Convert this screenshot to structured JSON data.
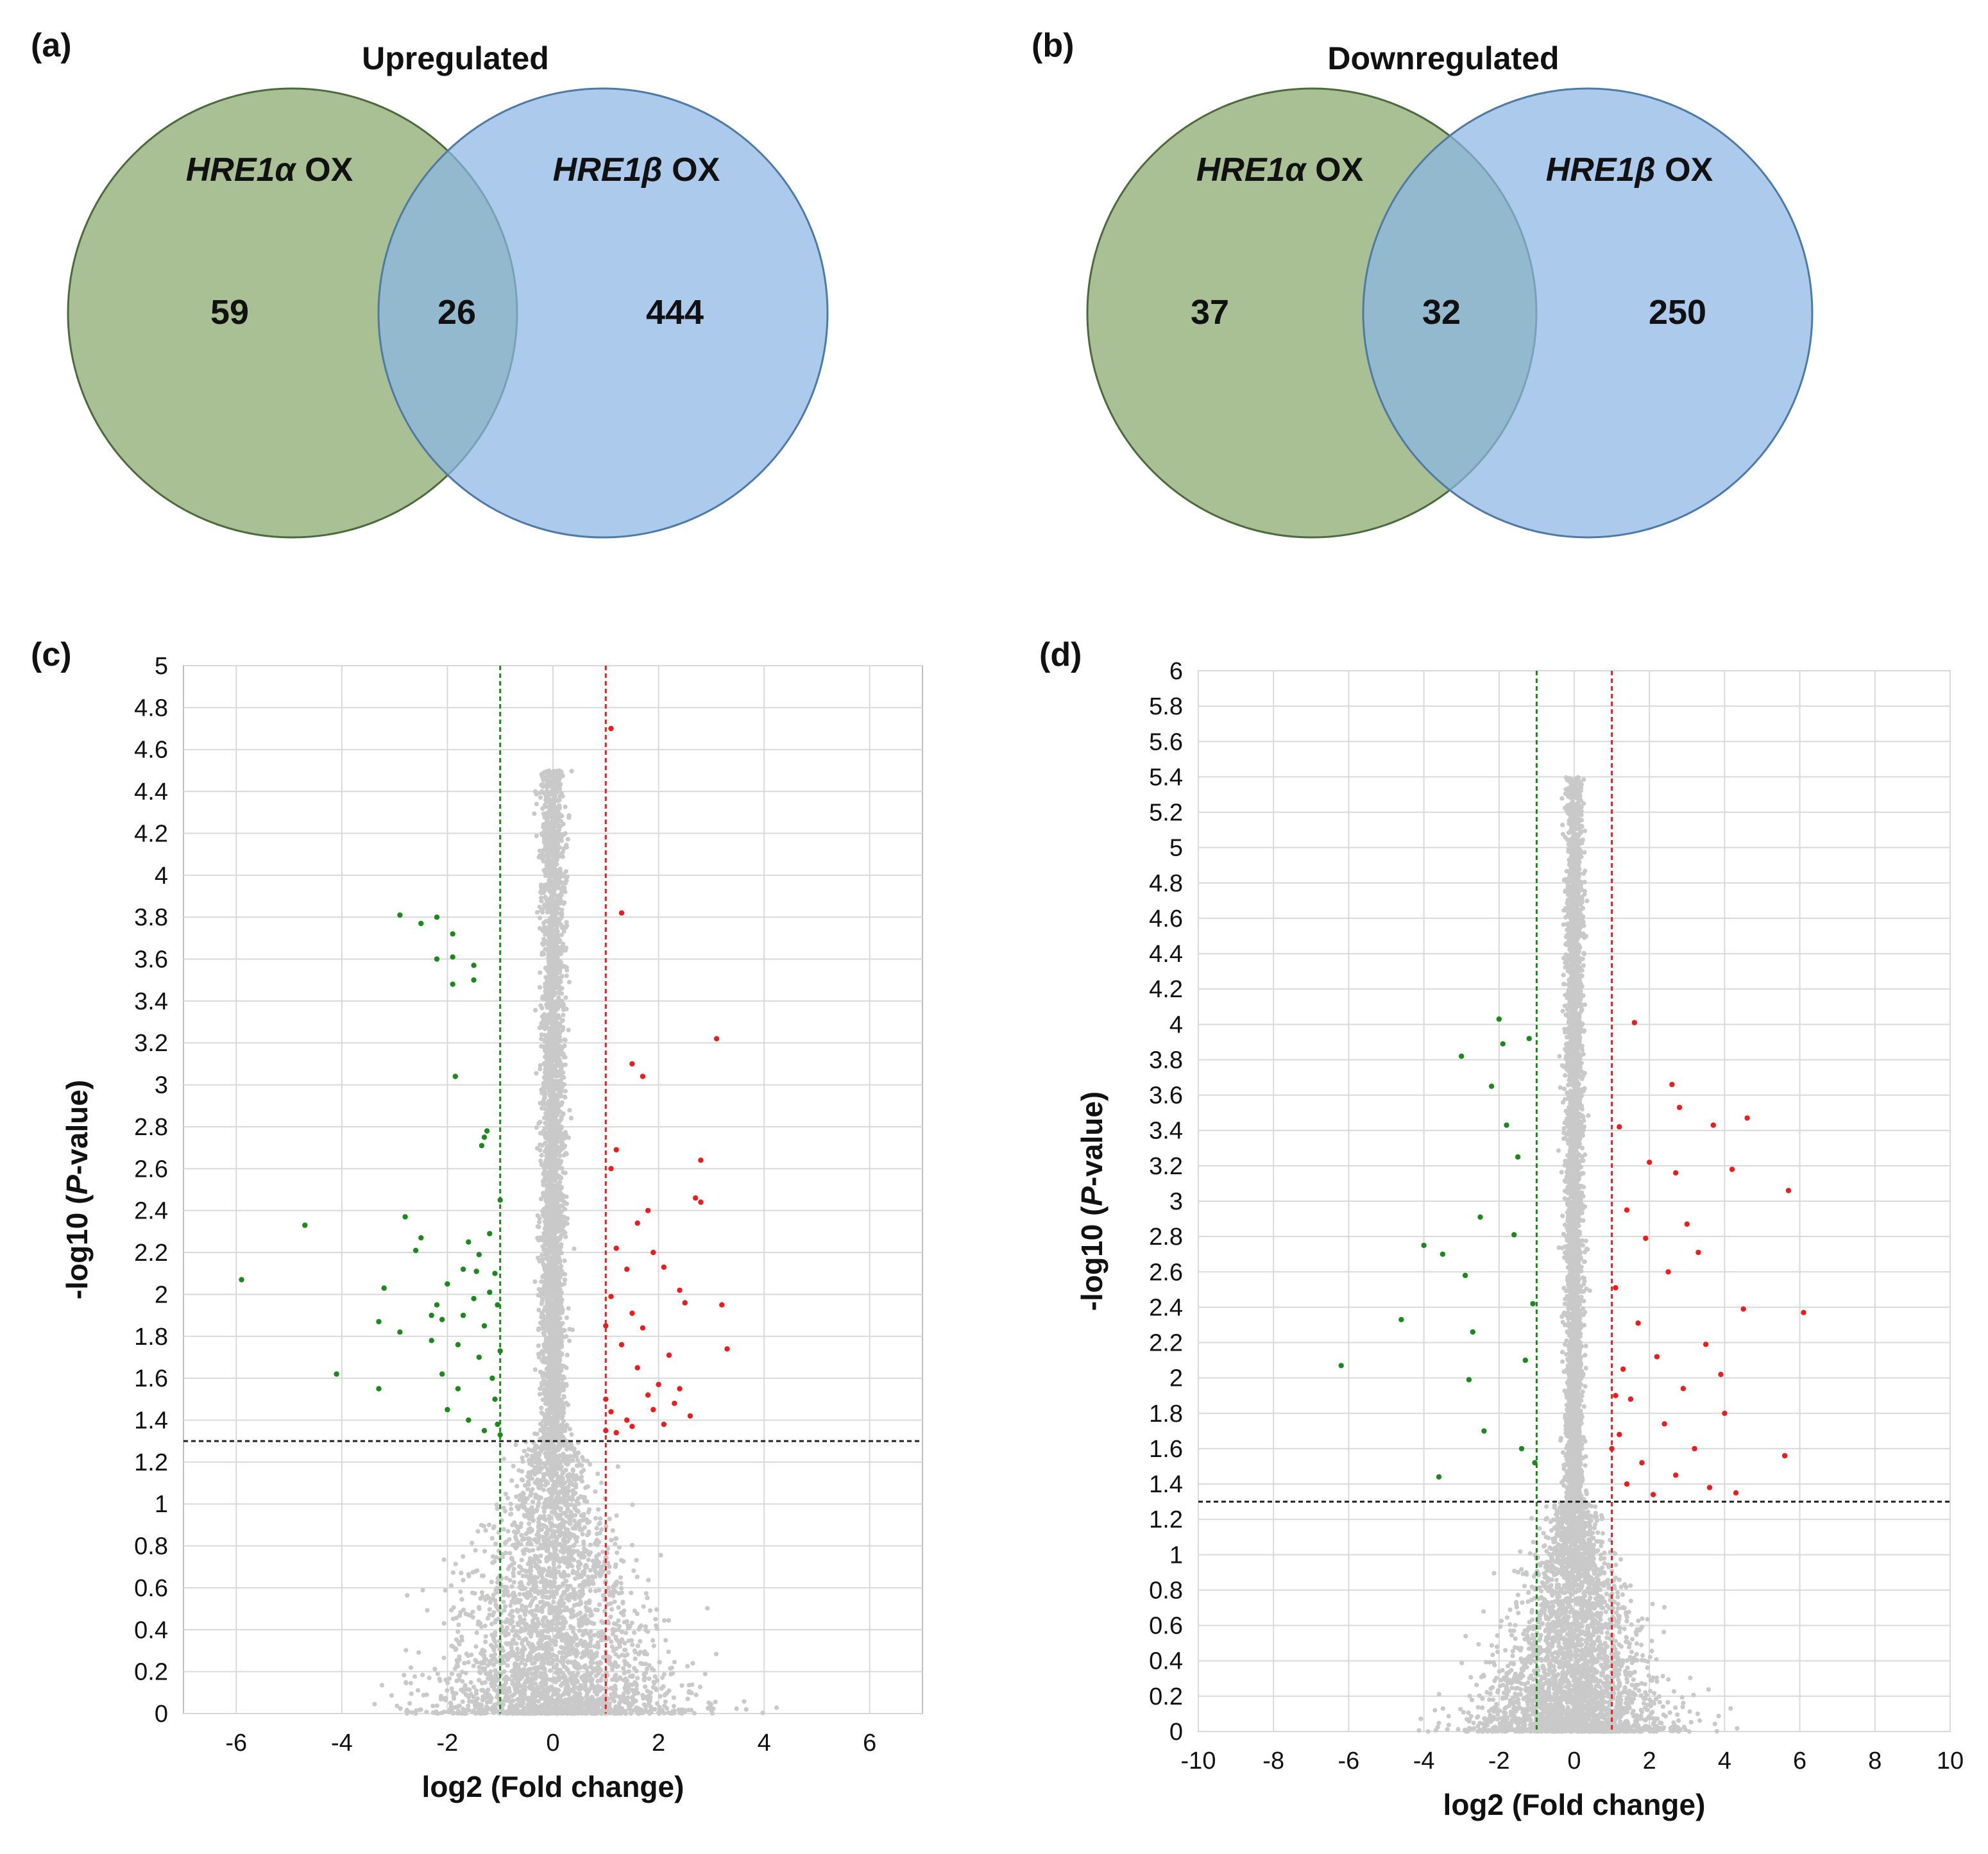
{
  "panels": {
    "a": {
      "label": "(a)",
      "title": "Upregulated",
      "set_left_italic": "HRE1α",
      "set_left_suffix": " OX",
      "set_right_italic": "HRE1β",
      "set_right_suffix": " OX",
      "left_only": "59",
      "intersection": "26",
      "right_only": "444"
    },
    "b": {
      "label": "(b)",
      "title": "Downregulated",
      "set_left_italic": "HRE1α",
      "set_left_suffix": " OX",
      "set_right_italic": "HRE1β",
      "set_right_suffix": " OX",
      "left_only": "37",
      "intersection": "32",
      "right_only": "250"
    },
    "c": {
      "label": "(c)"
    },
    "d": {
      "label": "(d)"
    }
  },
  "colors": {
    "venn_left": "#8fae74",
    "venn_right": "#8ab6e4",
    "venn_overlap": "#6f9fa6",
    "venn_left_stroke": "#4c6b3d",
    "venn_right_stroke": "#4e7aa6",
    "not_significant": "#c9c9c9",
    "down": "#1a8a1a",
    "up": "#ee1c1c",
    "grid": "#d9d9d9"
  },
  "chart_data": [
    {
      "type": "scatter",
      "panel": "c",
      "xlabel": "log2 (Fold change)",
      "ylabel_pre": "-log10 (",
      "ylabel_italic": "P",
      "ylabel_post": "-value)",
      "xlim": [
        -7,
        7
      ],
      "ylim": [
        0,
        5
      ],
      "xticks": [
        "-6",
        "-4",
        "-2",
        "0",
        "2",
        "4",
        "6"
      ],
      "xtick_values": [
        -6,
        -4,
        -2,
        0,
        2,
        4,
        6
      ],
      "yticks": [
        "0",
        "0.2",
        "0.4",
        "0.6",
        "0.8",
        "1",
        "1.2",
        "1.4",
        "1.6",
        "1.8",
        "2",
        "2.2",
        "2.4",
        "2.6",
        "2.8",
        "3",
        "3.2",
        "3.4",
        "3.6",
        "3.8",
        "4",
        "4.2",
        "4.4",
        "4.6",
        "4.8",
        "5"
      ],
      "ytick_step": 0.2,
      "fold_thresholds": [
        -1,
        1
      ],
      "p_threshold": 1.3,
      "series": [
        {
          "name": "down",
          "points": [
            [
              -5.9,
              2.07
            ],
            [
              -4.7,
              2.33
            ],
            [
              -4.1,
              1.62
            ],
            [
              -3.3,
              1.55
            ],
            [
              -3.3,
              1.87
            ],
            [
              -3.2,
              2.03
            ],
            [
              -2.9,
              1.82
            ],
            [
              -2.9,
              3.81
            ],
            [
              -2.8,
              2.37
            ],
            [
              -2.6,
              2.21
            ],
            [
              -2.5,
              2.27
            ],
            [
              -2.5,
              3.77
            ],
            [
              -2.3,
              1.78
            ],
            [
              -2.3,
              1.9
            ],
            [
              -2.2,
              3.8
            ],
            [
              -2.2,
              3.6
            ],
            [
              -2.2,
              1.95
            ],
            [
              -2.1,
              1.62
            ],
            [
              -2.1,
              1.88
            ],
            [
              -2.0,
              2.05
            ],
            [
              -2.0,
              1.45
            ],
            [
              -1.9,
              3.72
            ],
            [
              -1.9,
              3.61
            ],
            [
              -1.9,
              3.48
            ],
            [
              -1.85,
              3.04
            ],
            [
              -1.8,
              1.76
            ],
            [
              -1.8,
              1.55
            ],
            [
              -1.7,
              1.9
            ],
            [
              -1.7,
              2.12
            ],
            [
              -1.6,
              2.25
            ],
            [
              -1.6,
              1.4
            ],
            [
              -1.5,
              3.57
            ],
            [
              -1.5,
              3.5
            ],
            [
              -1.5,
              1.98
            ],
            [
              -1.45,
              2.11
            ],
            [
              -1.4,
              1.7
            ],
            [
              -1.4,
              2.19
            ],
            [
              -1.35,
              2.71
            ],
            [
              -1.3,
              2.75
            ],
            [
              -1.3,
              1.85
            ],
            [
              -1.3,
              1.35
            ],
            [
              -1.25,
              2.78
            ],
            [
              -1.2,
              2.01
            ],
            [
              -1.2,
              2.29
            ],
            [
              -1.15,
              1.6
            ],
            [
              -1.1,
              1.5
            ],
            [
              -1.1,
              2.1
            ],
            [
              -1.05,
              1.95
            ],
            [
              -1.05,
              1.38
            ],
            [
              -1.0,
              1.73
            ],
            [
              -1.0,
              2.45
            ],
            [
              -1.0,
              1.33
            ]
          ]
        },
        {
          "name": "up",
          "points": [
            [
              1.1,
              4.7
            ],
            [
              1.3,
              3.82
            ],
            [
              1.5,
              3.1
            ],
            [
              1.7,
              3.04
            ],
            [
              3.1,
              3.22
            ],
            [
              2.8,
              2.64
            ],
            [
              1.2,
              2.69
            ],
            [
              1.1,
              2.6
            ],
            [
              2.7,
              2.46
            ],
            [
              2.8,
              2.44
            ],
            [
              1.8,
              2.4
            ],
            [
              1.6,
              2.34
            ],
            [
              1.2,
              2.22
            ],
            [
              1.4,
              2.12
            ],
            [
              1.9,
              2.2
            ],
            [
              2.1,
              2.13
            ],
            [
              2.4,
              2.02
            ],
            [
              2.5,
              1.96
            ],
            [
              3.2,
              1.95
            ],
            [
              3.3,
              1.74
            ],
            [
              1.1,
              1.99
            ],
            [
              1.5,
              1.91
            ],
            [
              1.7,
              1.84
            ],
            [
              2.2,
              1.71
            ],
            [
              1.3,
              1.76
            ],
            [
              1.6,
              1.65
            ],
            [
              2.0,
              1.57
            ],
            [
              2.3,
              1.48
            ],
            [
              1.1,
              1.44
            ],
            [
              1.4,
              1.4
            ],
            [
              1.8,
              1.52
            ],
            [
              2.1,
              1.38
            ],
            [
              2.6,
              1.42
            ],
            [
              1.2,
              1.34
            ],
            [
              1.9,
              1.45
            ],
            [
              1.5,
              1.37
            ],
            [
              2.4,
              1.55
            ],
            [
              1.0,
              1.5
            ],
            [
              1.0,
              1.85
            ],
            [
              1.0,
              1.35
            ]
          ]
        }
      ]
    },
    {
      "type": "scatter",
      "panel": "d",
      "xlabel": "log2 (Fold change)",
      "ylabel_pre": "-log10 (",
      "ylabel_italic": "P",
      "ylabel_post": "-value)",
      "xlim": [
        -10,
        10
      ],
      "ylim": [
        0,
        6
      ],
      "xticks": [
        "-10",
        "-8",
        "-6",
        "-4",
        "-2",
        "0",
        "2",
        "4",
        "6",
        "8",
        "10"
      ],
      "xtick_values": [
        -10,
        -8,
        -6,
        -4,
        -2,
        0,
        2,
        4,
        6,
        8,
        10
      ],
      "yticks": [
        "0",
        "0.2",
        "0.4",
        "0.6",
        "0.8",
        "1",
        "1.2",
        "1.4",
        "1.6",
        "1.8",
        "2",
        "2.2",
        "2.4",
        "2.6",
        "2.8",
        "3",
        "3.2",
        "3.4",
        "3.6",
        "3.8",
        "4",
        "4.2",
        "4.4",
        "4.6",
        "4.8",
        "5",
        "5.2",
        "5.4",
        "5.6",
        "5.8",
        "6"
      ],
      "ytick_step": 0.2,
      "fold_thresholds": [
        -1,
        1
      ],
      "p_threshold": 1.3,
      "series": [
        {
          "name": "down",
          "points": [
            [
              -6.2,
              2.07
            ],
            [
              -4.6,
              2.33
            ],
            [
              -4.0,
              2.75
            ],
            [
              -3.5,
              2.7
            ],
            [
              -3.6,
              1.44
            ],
            [
              -3.0,
              3.82
            ],
            [
              -2.9,
              2.58
            ],
            [
              -2.8,
              1.99
            ],
            [
              -2.7,
              2.26
            ],
            [
              -2.5,
              2.91
            ],
            [
              -2.4,
              1.7
            ],
            [
              -2.2,
              3.65
            ],
            [
              -2.0,
              4.03
            ],
            [
              -1.9,
              3.89
            ],
            [
              -1.8,
              3.43
            ],
            [
              -1.6,
              2.81
            ],
            [
              -1.5,
              3.25
            ],
            [
              -1.4,
              1.6
            ],
            [
              -1.3,
              2.1
            ],
            [
              -1.2,
              3.92
            ],
            [
              -1.1,
              2.42
            ],
            [
              -1.05,
              1.52
            ]
          ]
        },
        {
          "name": "up",
          "points": [
            [
              1.6,
              4.01
            ],
            [
              2.6,
              3.66
            ],
            [
              2.8,
              3.53
            ],
            [
              1.2,
              3.42
            ],
            [
              3.7,
              3.43
            ],
            [
              4.6,
              3.47
            ],
            [
              2.0,
              3.22
            ],
            [
              4.2,
              3.18
            ],
            [
              2.7,
              3.16
            ],
            [
              5.7,
              3.06
            ],
            [
              1.4,
              2.95
            ],
            [
              3.0,
              2.87
            ],
            [
              1.9,
              2.79
            ],
            [
              3.3,
              2.71
            ],
            [
              2.5,
              2.6
            ],
            [
              1.1,
              2.51
            ],
            [
              4.5,
              2.39
            ],
            [
              6.1,
              2.37
            ],
            [
              1.7,
              2.31
            ],
            [
              3.5,
              2.19
            ],
            [
              2.2,
              2.12
            ],
            [
              1.3,
              2.05
            ],
            [
              3.9,
              2.02
            ],
            [
              2.9,
              1.94
            ],
            [
              1.5,
              1.88
            ],
            [
              4.0,
              1.8
            ],
            [
              2.4,
              1.74
            ],
            [
              1.2,
              1.68
            ],
            [
              3.2,
              1.6
            ],
            [
              5.6,
              1.56
            ],
            [
              1.8,
              1.52
            ],
            [
              2.7,
              1.45
            ],
            [
              1.4,
              1.4
            ],
            [
              3.6,
              1.38
            ],
            [
              2.1,
              1.34
            ],
            [
              4.3,
              1.35
            ],
            [
              1.0,
              1.6
            ],
            [
              1.1,
              1.9
            ]
          ]
        }
      ]
    }
  ]
}
